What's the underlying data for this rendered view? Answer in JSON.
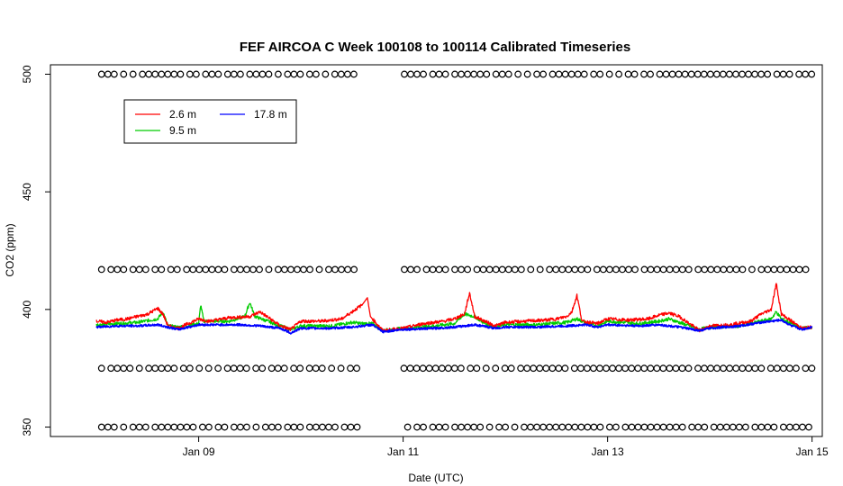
{
  "chart_data": {
    "type": "line",
    "title": "FEF AIRCOA C  Week 100108 to 100114  Calibrated Timeseries",
    "xlabel": "Date (UTC)",
    "ylabel": "CO2 (ppm)",
    "x_unit": "days (2010-01)",
    "xlim": [
      7.55,
      15.1
    ],
    "ylim": [
      346,
      504
    ],
    "x_ticks": [
      {
        "value": 9,
        "label": "Jan 09"
      },
      {
        "value": 11,
        "label": "Jan 11"
      },
      {
        "value": 13,
        "label": "Jan 13"
      },
      {
        "value": 15,
        "label": "Jan 15"
      }
    ],
    "y_ticks": [
      350,
      400,
      450,
      500
    ],
    "grid": false,
    "legend": {
      "position": "top-left",
      "entries": [
        {
          "name": "2.6 m",
          "color": "#ff0000"
        },
        {
          "name": "9.5 m",
          "color": "#00cc00"
        },
        {
          "name": "17.8 m",
          "color": "#0000ff"
        }
      ]
    },
    "series": [
      {
        "name": "2.6 m",
        "color": "#ff0000",
        "points": [
          [
            8.0,
            395
          ],
          [
            8.1,
            394.5
          ],
          [
            8.2,
            395.5
          ],
          [
            8.3,
            396
          ],
          [
            8.4,
            397
          ],
          [
            8.5,
            398
          ],
          [
            8.6,
            400.5
          ],
          [
            8.65,
            398
          ],
          [
            8.7,
            393
          ],
          [
            8.8,
            392
          ],
          [
            9.0,
            396
          ],
          [
            9.1,
            395
          ],
          [
            9.3,
            396.5
          ],
          [
            9.5,
            397
          ],
          [
            9.6,
            399
          ],
          [
            9.7,
            396
          ],
          [
            9.8,
            393
          ],
          [
            9.9,
            391.5
          ],
          [
            10.0,
            395
          ],
          [
            10.2,
            395
          ],
          [
            10.4,
            396
          ],
          [
            10.5,
            399
          ],
          [
            10.6,
            402
          ],
          [
            10.65,
            405
          ],
          [
            10.68,
            397
          ],
          [
            10.8,
            391
          ],
          [
            11.0,
            392
          ],
          [
            11.2,
            394
          ],
          [
            11.4,
            395
          ],
          [
            11.5,
            396
          ],
          [
            11.6,
            398
          ],
          [
            11.65,
            407
          ],
          [
            11.7,
            397
          ],
          [
            11.8,
            395
          ],
          [
            11.9,
            393
          ],
          [
            12.0,
            394.5
          ],
          [
            12.2,
            395
          ],
          [
            12.4,
            395.5
          ],
          [
            12.5,
            396
          ],
          [
            12.6,
            397
          ],
          [
            12.65,
            399
          ],
          [
            12.7,
            406
          ],
          [
            12.75,
            395
          ],
          [
            12.9,
            394
          ],
          [
            13.0,
            396
          ],
          [
            13.2,
            395.5
          ],
          [
            13.4,
            396
          ],
          [
            13.5,
            397.5
          ],
          [
            13.6,
            398.5
          ],
          [
            13.7,
            397
          ],
          [
            13.8,
            394
          ],
          [
            13.9,
            391
          ],
          [
            14.0,
            393
          ],
          [
            14.2,
            393.5
          ],
          [
            14.4,
            395
          ],
          [
            14.5,
            398
          ],
          [
            14.6,
            400
          ],
          [
            14.65,
            411
          ],
          [
            14.7,
            398
          ],
          [
            14.8,
            395
          ],
          [
            14.9,
            392
          ],
          [
            15.0,
            392.5
          ]
        ]
      },
      {
        "name": "9.5 m",
        "color": "#00cc00",
        "points": [
          [
            8.0,
            393.5
          ],
          [
            8.2,
            394
          ],
          [
            8.4,
            394.5
          ],
          [
            8.6,
            396
          ],
          [
            8.65,
            399
          ],
          [
            8.7,
            393
          ],
          [
            8.8,
            392.5
          ],
          [
            9.0,
            394
          ],
          [
            9.02,
            402
          ],
          [
            9.05,
            395
          ],
          [
            9.3,
            395
          ],
          [
            9.45,
            397
          ],
          [
            9.5,
            403
          ],
          [
            9.55,
            397
          ],
          [
            9.8,
            393
          ],
          [
            9.9,
            391.5
          ],
          [
            10.0,
            393
          ],
          [
            10.3,
            393
          ],
          [
            10.5,
            394.5
          ],
          [
            10.6,
            394
          ],
          [
            10.7,
            394
          ],
          [
            10.8,
            391
          ],
          [
            11.0,
            392
          ],
          [
            11.3,
            393
          ],
          [
            11.5,
            394
          ],
          [
            11.6,
            398
          ],
          [
            11.7,
            397
          ],
          [
            11.8,
            394
          ],
          [
            11.9,
            392.5
          ],
          [
            12.0,
            393.5
          ],
          [
            12.3,
            393.5
          ],
          [
            12.6,
            394.5
          ],
          [
            12.7,
            396
          ],
          [
            12.8,
            394
          ],
          [
            12.9,
            393
          ],
          [
            13.0,
            395
          ],
          [
            13.3,
            394
          ],
          [
            13.5,
            395
          ],
          [
            13.6,
            396
          ],
          [
            13.8,
            393
          ],
          [
            13.9,
            391.5
          ],
          [
            14.0,
            392.5
          ],
          [
            14.3,
            393
          ],
          [
            14.5,
            395
          ],
          [
            14.6,
            396
          ],
          [
            14.65,
            399
          ],
          [
            14.7,
            396
          ],
          [
            14.8,
            394
          ],
          [
            14.9,
            392
          ],
          [
            15.0,
            392.5
          ]
        ]
      },
      {
        "name": "17.8 m",
        "color": "#0000ff",
        "points": [
          [
            8.0,
            392.5
          ],
          [
            8.2,
            393
          ],
          [
            8.4,
            393
          ],
          [
            8.6,
            393.5
          ],
          [
            8.7,
            392.5
          ],
          [
            8.8,
            391.5
          ],
          [
            9.0,
            393.5
          ],
          [
            9.2,
            393.5
          ],
          [
            9.4,
            393.5
          ],
          [
            9.6,
            393
          ],
          [
            9.8,
            392
          ],
          [
            9.9,
            390
          ],
          [
            10.0,
            392
          ],
          [
            10.3,
            392
          ],
          [
            10.5,
            392.5
          ],
          [
            10.7,
            393.5
          ],
          [
            10.8,
            390.5
          ],
          [
            11.0,
            391.5
          ],
          [
            11.3,
            392
          ],
          [
            11.5,
            392.5
          ],
          [
            11.7,
            393.5
          ],
          [
            11.9,
            392
          ],
          [
            12.0,
            392.5
          ],
          [
            12.3,
            392.5
          ],
          [
            12.6,
            393
          ],
          [
            12.8,
            393.5
          ],
          [
            12.9,
            392.5
          ],
          [
            13.0,
            393.5
          ],
          [
            13.3,
            393
          ],
          [
            13.5,
            393.5
          ],
          [
            13.7,
            392.5
          ],
          [
            13.9,
            391
          ],
          [
            14.0,
            392
          ],
          [
            14.3,
            393
          ],
          [
            14.5,
            394.5
          ],
          [
            14.7,
            395.5
          ],
          [
            14.8,
            393
          ],
          [
            14.9,
            391.5
          ],
          [
            15.0,
            392.5
          ]
        ]
      },
      {
        "name": "",
        "marker": "open-circle",
        "color": "#000000",
        "levels": [
          350,
          375,
          417,
          500
        ],
        "x_start": 8.05,
        "x_end": 15.0,
        "gap": [
          10.55,
          11.0
        ]
      }
    ]
  }
}
